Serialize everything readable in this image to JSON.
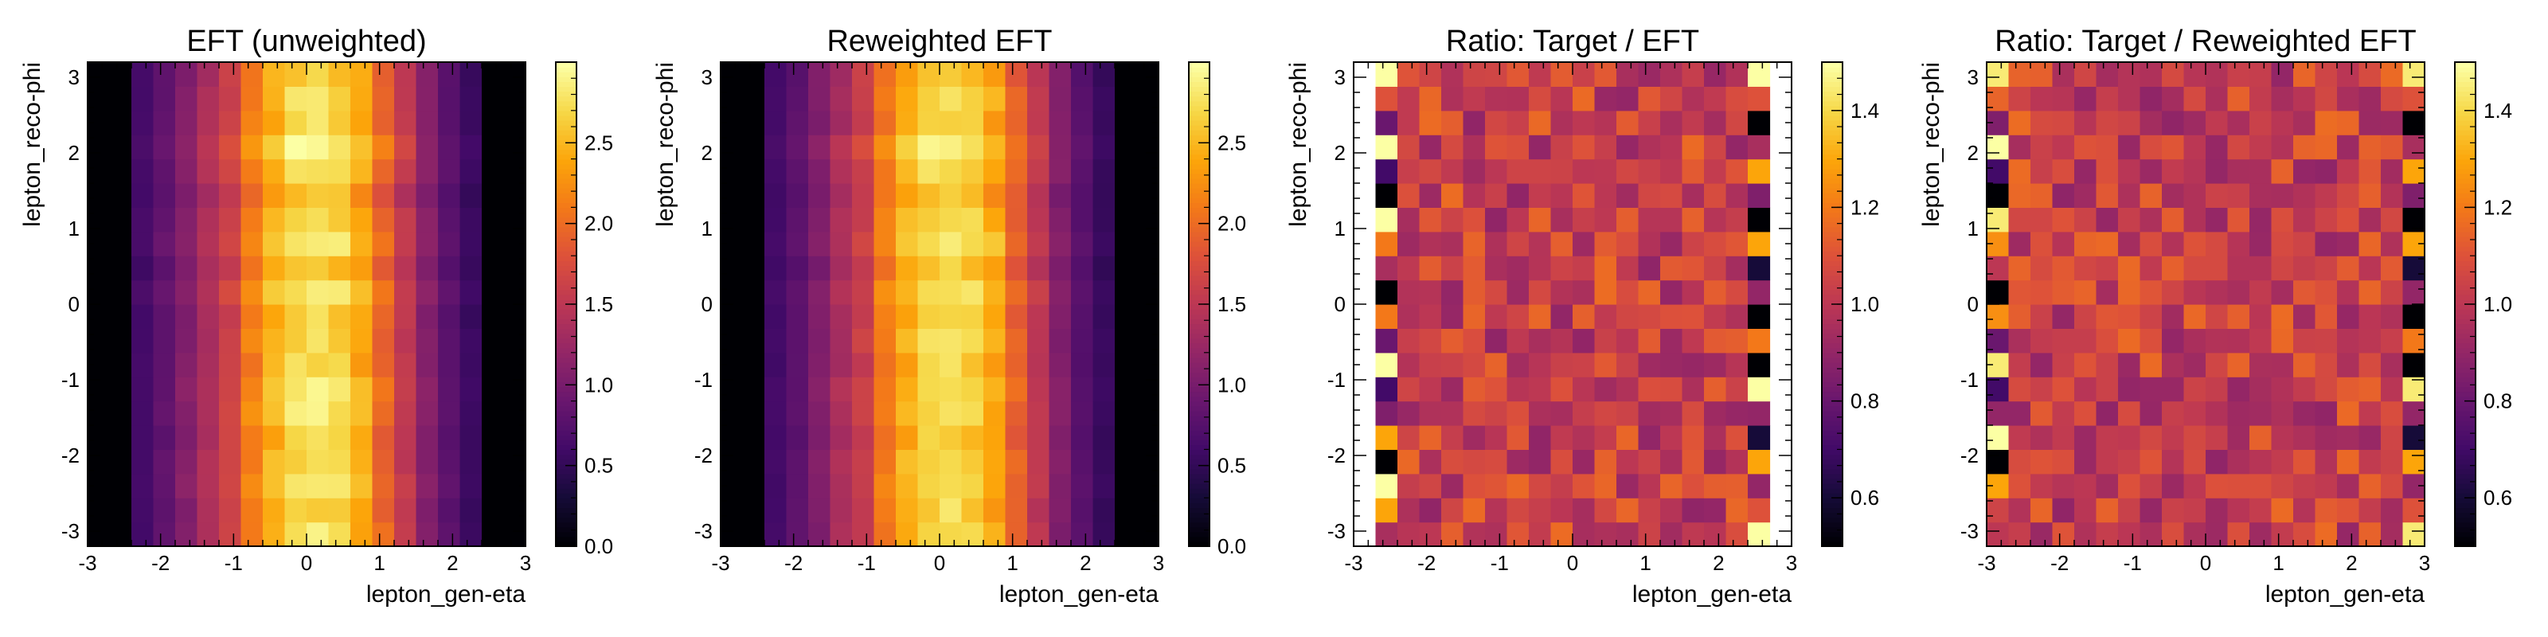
{
  "colormap": {
    "name": "inferno",
    "stops": [
      "#000004",
      "#160b39",
      "#420a68",
      "#6a176e",
      "#932667",
      "#bc3754",
      "#dd513a",
      "#f37819",
      "#fca50a",
      "#f6d746",
      "#fcffa4"
    ]
  },
  "chart_data": [
    {
      "type": "heatmap",
      "title": "EFT (unweighted)",
      "xlabel": "lepton_gen-eta",
      "ylabel": "lepton_reco-phi",
      "xlim": [
        -3,
        3
      ],
      "ylim": [
        -3.2,
        3.2
      ],
      "x_ticks": [
        -3,
        -2,
        -1,
        0,
        1,
        2,
        3
      ],
      "y_ticks": [
        -3,
        -2,
        -1,
        0,
        1,
        2,
        3
      ],
      "grid": false,
      "n_xbins": 20,
      "n_ybins": 20,
      "x_profile": [
        0.0,
        0.0,
        0.62,
        0.82,
        1.08,
        1.38,
        1.62,
        2.15,
        2.48,
        2.72,
        2.78,
        2.66,
        2.42,
        1.95,
        1.52,
        1.08,
        0.78,
        0.55,
        0.0,
        0.0
      ],
      "phi_modulation": [
        0.02,
        -0.05,
        0.08,
        0.02,
        -0.02,
        0.06,
        0.1,
        -0.03,
        0.0,
        -0.06,
        0.12,
        -0.15,
        0.15,
        0.05,
        -0.15,
        0.06,
        0.2,
        -0.04,
        0.01,
        -0.06
      ],
      "colorbar": {
        "range": [
          0,
          3
        ],
        "ticks": [
          "0.0",
          "0.5",
          "1.0",
          "1.5",
          "2.0",
          "2.5"
        ]
      }
    },
    {
      "type": "heatmap",
      "title": "Reweighted EFT",
      "xlabel": "lepton_gen-eta",
      "ylabel": "lepton_reco-phi",
      "xlim": [
        -3,
        3
      ],
      "ylim": [
        -3.2,
        3.2
      ],
      "x_ticks": [
        -3,
        -2,
        -1,
        0,
        1,
        2,
        3
      ],
      "y_ticks": [
        -3,
        -2,
        -1,
        0,
        1,
        2,
        3
      ],
      "grid": false,
      "n_xbins": 20,
      "n_ybins": 20,
      "x_profile": [
        0.0,
        0.0,
        0.6,
        0.8,
        1.05,
        1.35,
        1.6,
        2.12,
        2.45,
        2.7,
        2.76,
        2.64,
        2.4,
        1.92,
        1.5,
        1.06,
        0.76,
        0.53,
        0.0,
        0.0
      ],
      "phi_modulation": [
        0.0,
        -0.03,
        0.06,
        0.04,
        -0.04,
        0.05,
        0.08,
        -0.05,
        0.02,
        -0.04,
        0.1,
        -0.12,
        0.13,
        0.03,
        -0.13,
        0.05,
        0.18,
        -0.02,
        0.03,
        -0.04
      ],
      "colorbar": {
        "range": [
          0,
          3
        ],
        "ticks": [
          "0.0",
          "0.5",
          "1.0",
          "1.5",
          "2.0",
          "2.5"
        ]
      }
    },
    {
      "type": "heatmap",
      "title": "Ratio: Target / EFT",
      "xlabel": "lepton_gen-eta",
      "ylabel": "lepton_reco-phi",
      "xlim": [
        -3,
        3
      ],
      "ylim": [
        -3.2,
        3.2
      ],
      "x_ticks": [
        -3,
        -2,
        -1,
        0,
        1,
        2,
        3
      ],
      "y_ticks": [
        -3,
        -2,
        -1,
        0,
        1,
        2,
        3
      ],
      "grid": false,
      "n_xbins": 20,
      "n_ybins": 20,
      "x_start": -2.7,
      "x_bin_width": 0.3,
      "n_data_cols": 18,
      "left_edge": [
        0.95,
        1.3,
        1.5,
        0.5,
        1.3,
        0.85,
        0.7,
        1.5,
        0.8,
        1.2,
        0.5,
        0.95,
        1.2,
        1.5,
        0.5,
        0.7,
        1.5,
        0.8,
        1.1,
        1.5
      ],
      "right_edge": [
        1.5,
        1.1,
        0.9,
        1.3,
        0.6,
        0.9,
        1.5,
        0.5,
        1.2,
        0.5,
        0.9,
        0.6,
        1.3,
        0.5,
        0.85,
        1.3,
        0.95,
        0.5,
        1.1,
        1.5
      ],
      "center_value": 1.03,
      "colorbar": {
        "range": [
          0.5,
          1.5
        ],
        "ticks": [
          "0.6",
          "0.8",
          "1.0",
          "1.2",
          "1.4"
        ]
      }
    },
    {
      "type": "heatmap",
      "title": "Ratio: Target / Reweighted EFT",
      "xlabel": "lepton_gen-eta",
      "ylabel": "lepton_reco-phi",
      "xlim": [
        -3,
        3
      ],
      "ylim": [
        -3.2,
        3.2
      ],
      "x_ticks": [
        -3,
        -2,
        -1,
        0,
        1,
        2,
        3
      ],
      "y_ticks": [
        -3,
        -2,
        -1,
        0,
        1,
        2,
        3
      ],
      "grid": false,
      "n_xbins": 20,
      "n_ybins": 20,
      "x_start": -3.0,
      "x_bin_width": 0.3,
      "n_data_cols": 20,
      "left_edge": [
        1.0,
        1.05,
        1.3,
        0.5,
        1.5,
        0.9,
        0.7,
        1.45,
        0.8,
        1.25,
        0.5,
        1.0,
        1.25,
        1.45,
        0.5,
        0.7,
        1.5,
        0.85,
        1.15,
        1.45
      ],
      "right_edge": [
        1.45,
        1.1,
        0.9,
        1.3,
        0.6,
        0.9,
        1.45,
        0.5,
        1.2,
        0.5,
        0.9,
        0.6,
        1.3,
        0.5,
        0.85,
        1.3,
        0.95,
        0.5,
        1.1,
        1.45
      ],
      "center_value": 1.03,
      "colorbar": {
        "range": [
          0.5,
          1.5
        ],
        "ticks": [
          "0.6",
          "0.8",
          "1.0",
          "1.2",
          "1.4"
        ]
      }
    }
  ]
}
